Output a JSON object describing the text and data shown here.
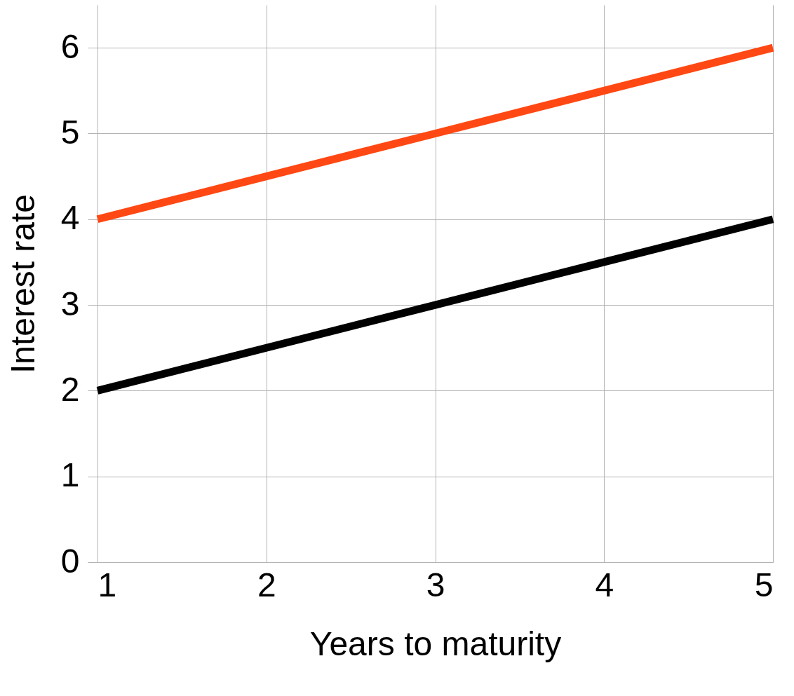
{
  "chart_data": {
    "type": "line",
    "xlabel": "Years to maturity",
    "ylabel": "Interest rate",
    "x": [
      1,
      2,
      3,
      4,
      5
    ],
    "series": [
      {
        "color": "#ff4813",
        "values": [
          4,
          4.5,
          5,
          5.5,
          6
        ]
      },
      {
        "color": "#000000",
        "values": [
          2,
          2.5,
          3,
          3.5,
          4
        ]
      }
    ],
    "xlim": [
      1,
      5
    ],
    "xticks": [
      1,
      2,
      3,
      4,
      5
    ],
    "ylim": [
      0,
      6.5
    ],
    "yticks": [
      0,
      1,
      2,
      3,
      4,
      5,
      6
    ],
    "grid": true,
    "legend": false,
    "marker": "none",
    "line_style": "solid"
  }
}
